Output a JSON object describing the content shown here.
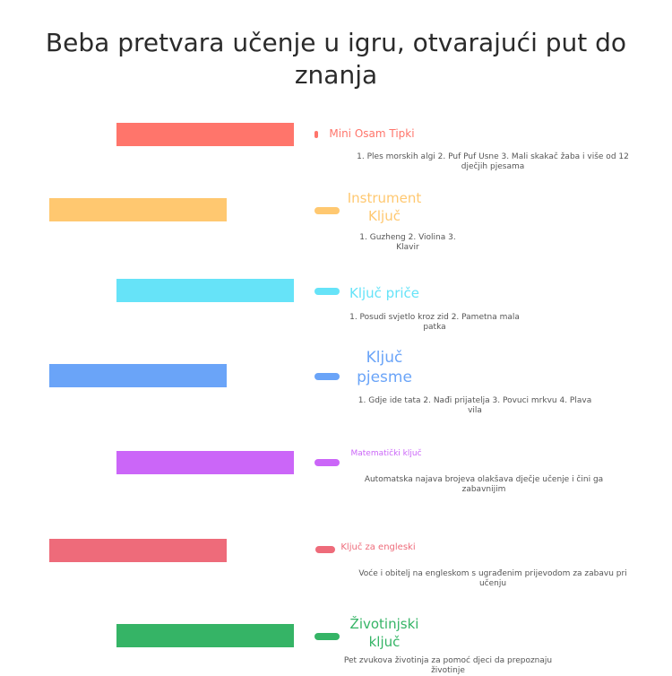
{
  "title": "Beba pretvara učenje u igru, otvarajući put do znanja",
  "items": [
    {
      "label": "Mini Osam Tipki",
      "desc": "1. Ples morskih algi 2. Puf Puf Usne 3. Mali skakač žaba i više od 12 dječjih pjesama",
      "color": "#ff756b"
    },
    {
      "label": "Instrument Ključ",
      "desc": "1. Guzheng 2. Violina 3. Klavir",
      "color": "#ffc870"
    },
    {
      "label": "Ključ priče",
      "desc": "1. Posudi svjetlo kroz zid 2. Pametna mala patka",
      "color": "#66e3f8"
    },
    {
      "label": "Ključ pjesme",
      "desc": "1. Gdje ide tata 2. Nađi prijatelja 3. Povuci mrkvu 4. Plava vila",
      "color": "#6aa4f8"
    },
    {
      "label": "Matematički ključ",
      "desc": "Automatska najava brojeva olakšava dječje učenje i čini ga zabavnijim",
      "color": "#cb66f8"
    },
    {
      "label": "Ključ za engleski",
      "desc": "Voće i obitelj na engleskom s ugrađenim prijevodom za zabavu pri učenju",
      "color": "#ee6b7a"
    },
    {
      "label": "Životinjski ključ",
      "desc": "Pet zvukova životinja za pomoć djeci da prepoznaju životinje",
      "color": "#35b466"
    }
  ]
}
